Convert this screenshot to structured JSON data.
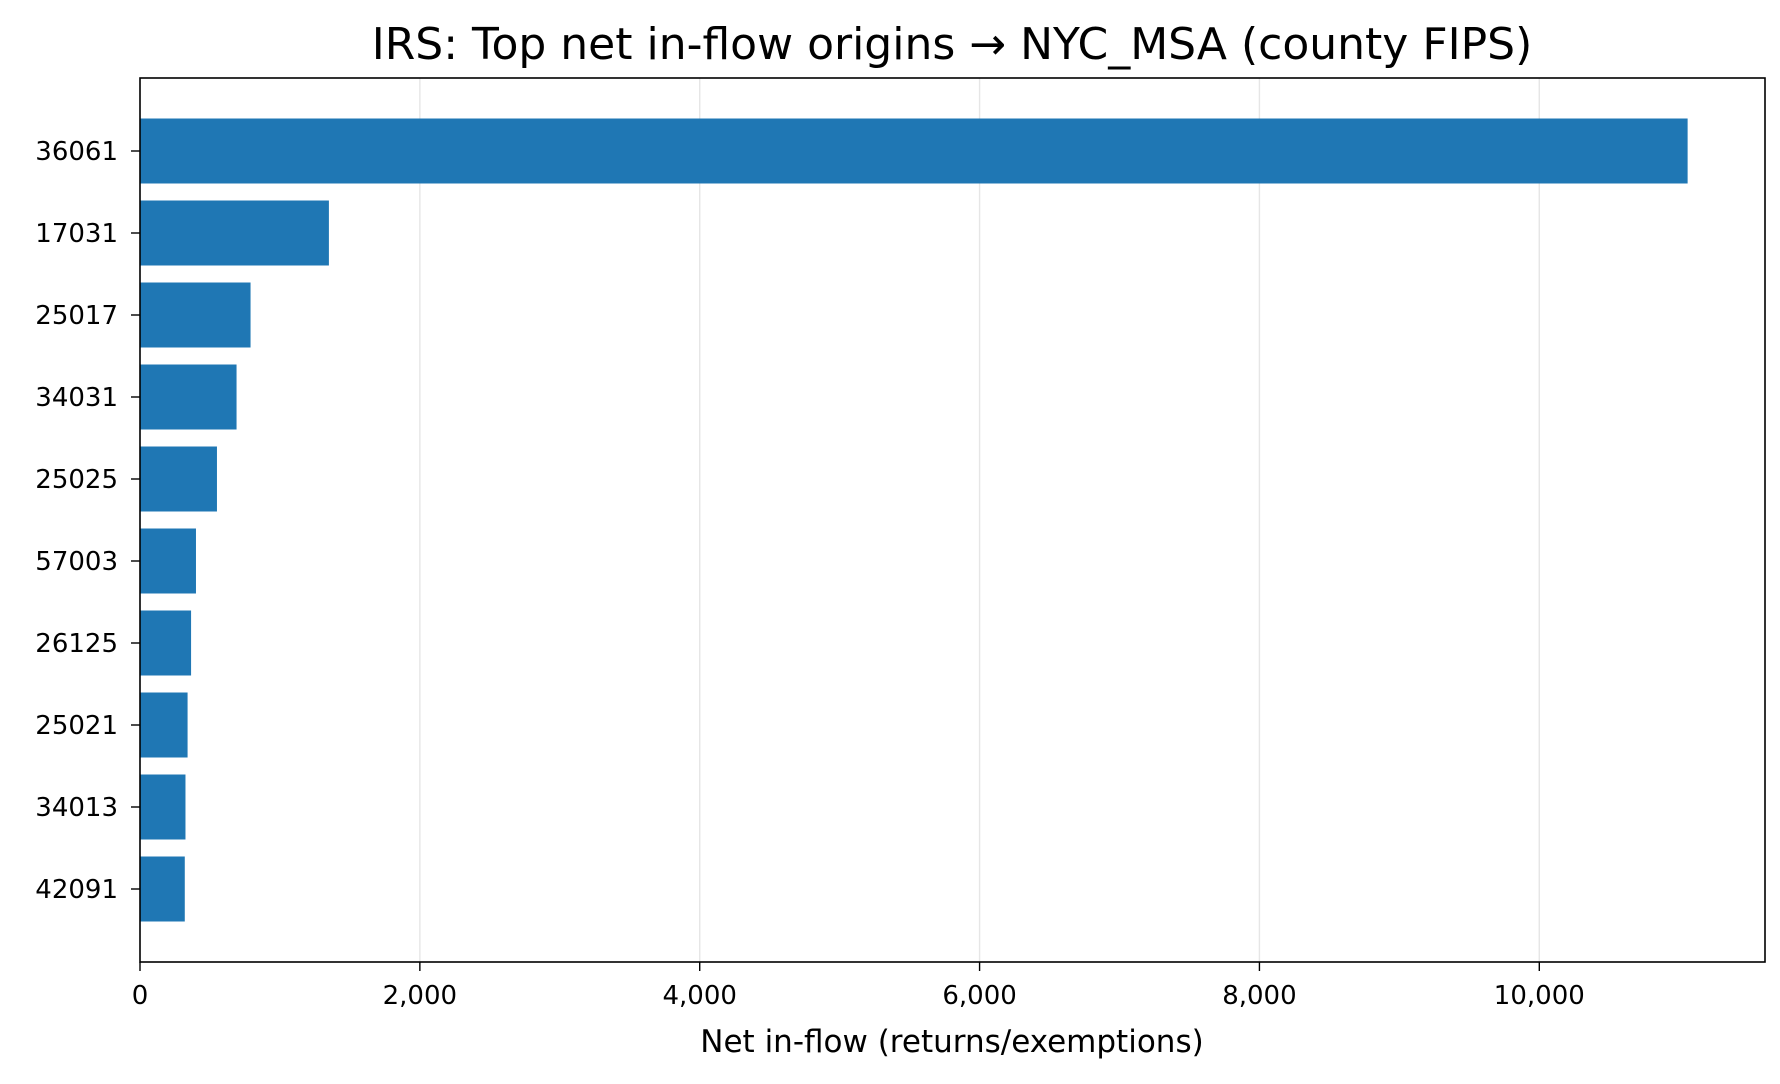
{
  "chart_data": {
    "type": "bar",
    "orientation": "horizontal",
    "title": "IRS: Top net in-flow origins → NYC_MSA (county FIPS)",
    "xlabel": "Net in-flow (returns/exemptions)",
    "ylabel": "",
    "categories": [
      "36061",
      "17031",
      "25017",
      "34031",
      "25025",
      "57003",
      "26125",
      "25021",
      "34013",
      "42091"
    ],
    "values": [
      11060,
      1350,
      790,
      690,
      550,
      400,
      365,
      340,
      325,
      320
    ],
    "xlim": [
      0,
      11613
    ],
    "xticks": [
      0,
      2000,
      4000,
      6000,
      8000,
      10000
    ],
    "xtick_labels": [
      "0",
      "2,000",
      "4,000",
      "6,000",
      "8,000",
      "10,000"
    ],
    "grid": "vertical gridlines on x-axis",
    "bar_color": "#1f77b4",
    "grid_color": "#e6e6e6"
  }
}
